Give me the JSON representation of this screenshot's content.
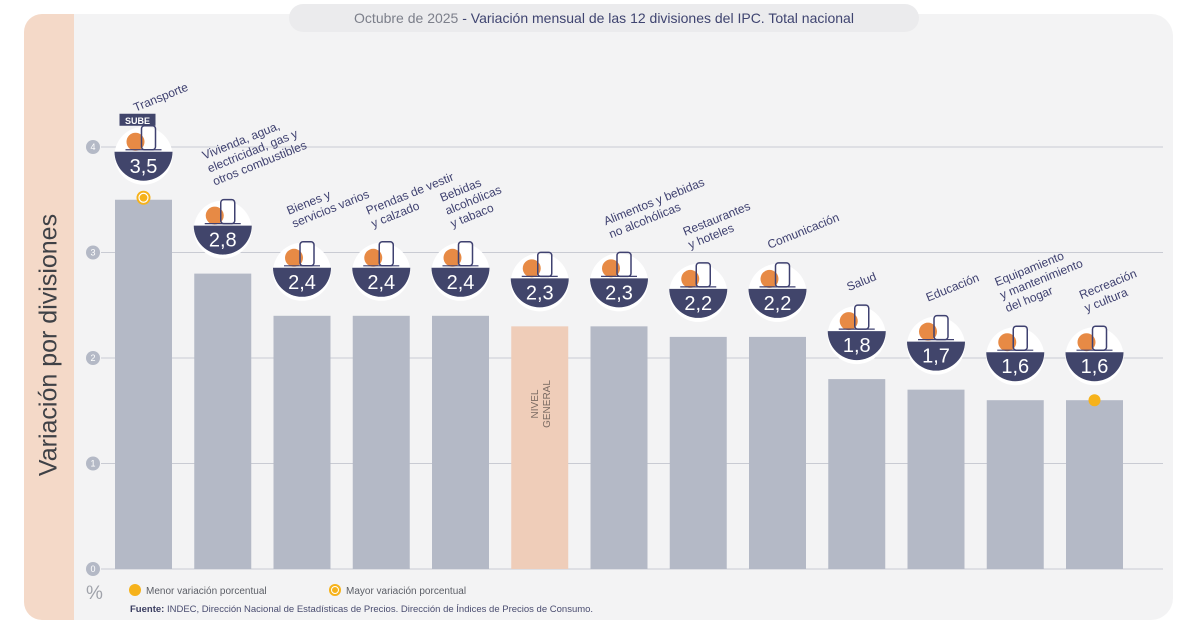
{
  "title": {
    "period": "Octubre de 2025",
    "text": "Variación mensual de las 12 divisiones del IPC. Total nacional"
  },
  "ylabel": "Variación por divisiones",
  "unit": "%",
  "legend": {
    "min_label": "Menor variación porcentual",
    "max_label": "Mayor variación porcentual"
  },
  "source": {
    "label": "Fuente:",
    "text": "INDEC, Dirección Nacional de Estadísticas de Precios. Dirección de Índices de Precios de Consumo."
  },
  "colors": {
    "bar": "#b4b9c6",
    "highlight": "#efcdb9",
    "badge": "#41456b",
    "marker": "#f6b21b",
    "icon_orange": "#e47d31"
  },
  "chart_data": {
    "type": "bar",
    "categories": [
      "Transporte",
      "Vivienda, agua, electricidad, gas y otros combustibles",
      "Bienes y servicios varios",
      "Prendas de vestir y calzado",
      "Bebidas alcohólicas y tabaco",
      "Nivel general",
      "Alimentos y bebidas no alcohólicas",
      "Restaurantes y hoteles",
      "Comunicación",
      "Salud",
      "Educación",
      "Equipamiento y mantenimiento del hogar",
      "Recreación y cultura"
    ],
    "values": [
      3.5,
      2.8,
      2.4,
      2.4,
      2.4,
      2.3,
      2.3,
      2.2,
      2.2,
      1.8,
      1.7,
      1.6,
      1.6
    ],
    "value_labels": [
      "3,5",
      "2,8",
      "2,4",
      "2,4",
      "2,4",
      "2,3",
      "2,3",
      "2,2",
      "2,2",
      "1,8",
      "1,7",
      "1,6",
      "1,6"
    ],
    "label_lines": [
      [
        "Transporte"
      ],
      [
        "Vivienda, agua,",
        "electricidad, gas y",
        "otros combustibles"
      ],
      [
        "Bienes y",
        "servicios varios"
      ],
      [
        "Prendas de vestir",
        "y calzado"
      ],
      [
        "Bebidas",
        "alcohólicas",
        "y tabaco"
      ],
      [],
      [
        "Alimentos y bebidas",
        "no alcohólicas"
      ],
      [
        "Restaurantes",
        "y hoteles"
      ],
      [
        "Comunicación"
      ],
      [
        "Salud"
      ],
      [
        "Educación"
      ],
      [
        "Equipamiento",
        "y mantenimiento",
        "del hogar"
      ],
      [
        "Recreación",
        "y cultura"
      ]
    ],
    "general_label": [
      "NIVEL",
      "GENERAL"
    ],
    "icons": [
      "bus-card-icon",
      "lightbulb-icon",
      "comb-scissors-icon",
      "tshirt-icon",
      "bottle-glass-icon",
      "shopping-basket-icon",
      "food-plate-icon",
      "cutlery-icon",
      "phone-icon",
      "medical-cross-icon",
      "notebook-icon",
      "washing-machine-icon",
      "beach-umbrella-icon"
    ],
    "sube_text": "SUBE",
    "highlight_index": 5,
    "max_marker_index": 0,
    "min_marker_index": 12,
    "yticks": [
      0,
      1,
      2,
      3,
      4
    ],
    "ylim": [
      0,
      4.5
    ],
    "grid": true
  }
}
